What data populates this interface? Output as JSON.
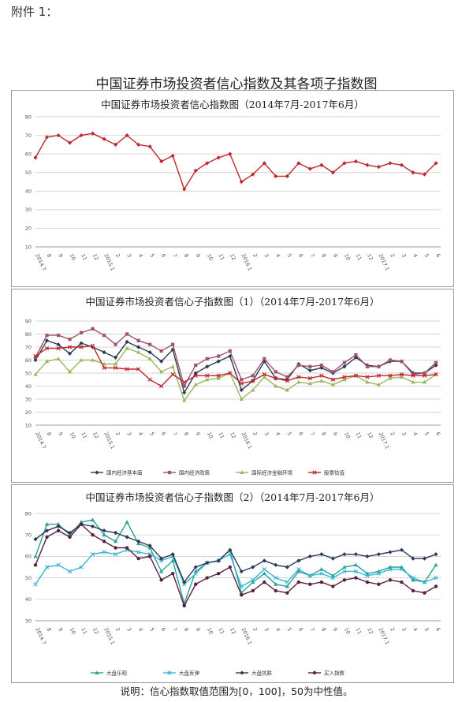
{
  "header": {
    "attachment": "附件 1："
  },
  "main_title": "中国证券市场投资者信心指数及其各项子指数图",
  "footnote": "说明：信心指数取值范围为[0，100]，50为中性值。",
  "x_labels": [
    "2014.7",
    "8",
    "9",
    "10",
    "11",
    "12",
    "2015.1",
    "2",
    "3",
    "4",
    "5",
    "6",
    "7",
    "8",
    "9",
    "10",
    "11",
    "12",
    "2016.1",
    "2",
    "3",
    "4",
    "5",
    "6",
    "7",
    "8",
    "9",
    "10",
    "11",
    "12",
    "2017.1",
    "2",
    "3",
    "4",
    "5",
    "6"
  ],
  "chart_data": [
    {
      "type": "line",
      "title": "中国证券市场投资者信心指数图（2014年7月-2017年6月）",
      "ylim": [
        10,
        80
      ],
      "yticks": [
        10,
        20,
        30,
        40,
        50,
        60,
        70,
        80
      ],
      "series": [
        {
          "color": "#c0262d",
          "marker": "diamond",
          "values": [
            58,
            69,
            70,
            66,
            70,
            71,
            68,
            65,
            70,
            65,
            64,
            56,
            59,
            41,
            51,
            55,
            58,
            60,
            45,
            49,
            55,
            48,
            48,
            55,
            52,
            54,
            50,
            55,
            56,
            54,
            53,
            55,
            54,
            50,
            49,
            55
          ]
        }
      ]
    },
    {
      "type": "line",
      "title": "中国证券市场投资者信心子指数图（1）（2014年7月-2017年6月）",
      "ylim": [
        10,
        90
      ],
      "yticks": [
        10,
        20,
        30,
        40,
        50,
        60,
        70,
        80,
        90
      ],
      "legend_position": "bottom",
      "series": [
        {
          "name": "国内经济基本面",
          "color": "#2b3a55",
          "marker": "diamond",
          "values": [
            60,
            75,
            72,
            65,
            73,
            70,
            66,
            62,
            74,
            70,
            66,
            59,
            68,
            35,
            50,
            55,
            59,
            63,
            37,
            44,
            59,
            46,
            45,
            57,
            52,
            54,
            50,
            55,
            62,
            56,
            55,
            59,
            59,
            50,
            50,
            56
          ]
        },
        {
          "name": "国内经济政策",
          "color": "#a0526e",
          "marker": "square",
          "values": [
            62,
            79,
            79,
            76,
            81,
            84,
            79,
            72,
            80,
            75,
            72,
            67,
            72,
            40,
            56,
            61,
            63,
            67,
            45,
            48,
            61,
            51,
            47,
            56,
            55,
            56,
            51,
            58,
            64,
            55,
            55,
            60,
            59,
            49,
            50,
            58
          ]
        },
        {
          "name": "国际经济金融环境",
          "color": "#9ab85a",
          "marker": "triangle",
          "values": [
            49,
            59,
            61,
            51,
            60,
            60,
            57,
            57,
            69,
            66,
            61,
            51,
            55,
            29,
            41,
            45,
            46,
            50,
            30,
            37,
            47,
            40,
            37,
            43,
            42,
            44,
            41,
            45,
            48,
            43,
            41,
            46,
            47,
            43,
            43,
            49
          ]
        },
        {
          "name": "股票估值",
          "color": "#c0262d",
          "marker": "x",
          "values": [
            63,
            69,
            69,
            70,
            70,
            71,
            54,
            54,
            53,
            53,
            45,
            40,
            49,
            43,
            48,
            48,
            48,
            50,
            42,
            44,
            49,
            46,
            44,
            47,
            46,
            48,
            45,
            47,
            48,
            47,
            48,
            48,
            49,
            48,
            48,
            49
          ]
        }
      ]
    },
    {
      "type": "line",
      "title": "中国证券市场投资者信心子指数图（2）（2014年7月-2017年6月）",
      "ylim": [
        30,
        80
      ],
      "yticks": [
        30,
        40,
        50,
        60,
        70,
        80
      ],
      "legend_position": "bottom",
      "series": [
        {
          "name": "大盘乐观",
          "color": "#2aa198",
          "marker": "triangle",
          "values": [
            60,
            75,
            75,
            70,
            76,
            77,
            70,
            67,
            76,
            66,
            64,
            53,
            58,
            38,
            53,
            57,
            58,
            63,
            43,
            48,
            52,
            47,
            46,
            53,
            51,
            54,
            51,
            55,
            56,
            52,
            53,
            55,
            55,
            49,
            48,
            56
          ]
        },
        {
          "name": "大盘反弹",
          "color": "#39b5d8",
          "marker": "x",
          "values": [
            47,
            55,
            56,
            53,
            55,
            61,
            62,
            61,
            63,
            62,
            61,
            58,
            60,
            47,
            52,
            57,
            58,
            61,
            46,
            49,
            54,
            50,
            48,
            54,
            51,
            52,
            50,
            53,
            53,
            51,
            52,
            54,
            54,
            50,
            48,
            50
          ]
        },
        {
          "name": "大盘抗跌",
          "color": "#2b3a55",
          "marker": "diamond",
          "values": [
            68,
            72,
            74,
            71,
            75,
            74,
            72,
            71,
            69,
            67,
            65,
            59,
            61,
            48,
            55,
            57,
            58,
            63,
            53,
            55,
            58,
            56,
            55,
            58,
            60,
            61,
            59,
            61,
            61,
            60,
            61,
            62,
            63,
            59,
            59,
            61
          ]
        },
        {
          "name": "买入指数",
          "color": "#5a2040",
          "marker": "circle",
          "values": [
            56,
            69,
            72,
            69,
            75,
            70,
            67,
            64,
            64,
            59,
            60,
            49,
            52,
            37,
            47,
            50,
            52,
            55,
            42,
            44,
            48,
            44,
            43,
            48,
            47,
            48,
            46,
            49,
            50,
            48,
            47,
            49,
            48,
            44,
            43,
            46
          ]
        }
      ]
    }
  ]
}
